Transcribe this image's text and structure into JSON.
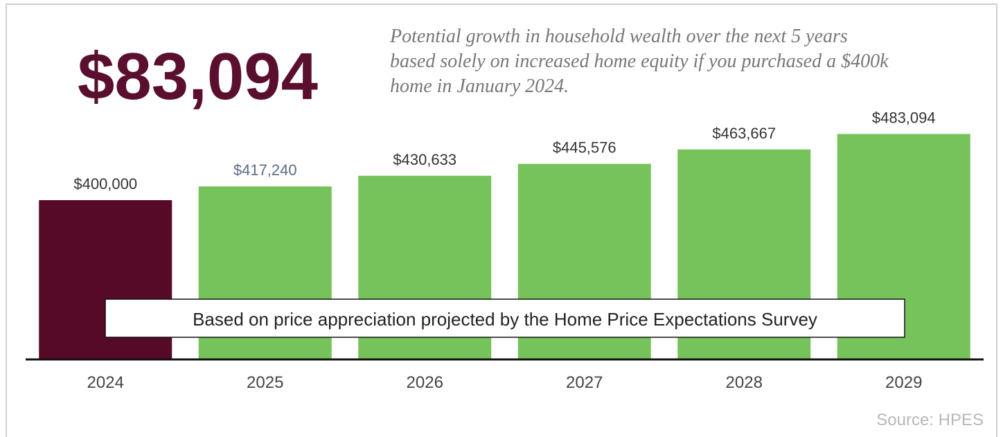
{
  "chart_data": {
    "type": "bar",
    "headline": "$83,094",
    "subtitle": [
      "Potential growth in household wealth over the next 5 years",
      "based solely on increased home equity if you purchased a $400k",
      "home in January 2024."
    ],
    "categories": [
      "2024",
      "2025",
      "2026",
      "2027",
      "2028",
      "2029"
    ],
    "values": [
      400000,
      417240,
      430633,
      445576,
      463667,
      483094
    ],
    "value_labels": [
      "$400,000",
      "$417,240",
      "$430,633",
      "$445,576",
      "$463,667",
      "$483,094"
    ],
    "colors": [
      "#560a28",
      "#75c35a",
      "#75c35a",
      "#75c35a",
      "#75c35a",
      "#75c35a"
    ],
    "value_label_colors": [
      "#333333",
      "#5a6e85",
      "#333333",
      "#333333",
      "#333333",
      "#333333"
    ],
    "ylim": [
      200000,
      500000
    ],
    "annotation": "Based on price appreciation projected by the Home Price Expectations Survey",
    "source": "Source: HPES"
  }
}
